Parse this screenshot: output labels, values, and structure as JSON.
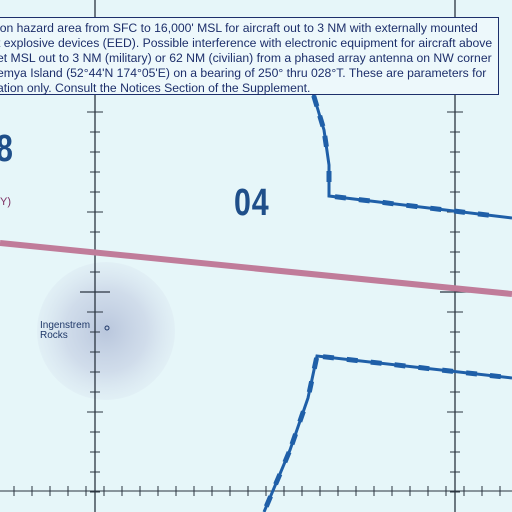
{
  "notice": {
    "lines": [
      "ion hazard area from SFC to 16,000' MSL for aircraft out to 3 NM with externally mounted",
      "t explosive devices (EED). Possible interference with electronic equipment for aircraft above",
      "et MSL out to 3 NM (military) or 62 NM (civilian) from a phased array antenna on NW corner",
      "emya Island (52°44'N 174°05'E) on a bearing of 250° thru 028°T. These are parameters for",
      "ation only. Consult the Notices Section of the Supplement."
    ]
  },
  "labels": {
    "area_number_right": "04",
    "area_number_left": "8",
    "edge_letter": "Y)",
    "feature_name_line1": "Ingenstrem",
    "feature_name_line2": "Rocks"
  },
  "colors": {
    "water": "#e6f6f9",
    "boundary": "#1f5fa8",
    "route": "#c07c9a",
    "grid": "#2a3440"
  }
}
